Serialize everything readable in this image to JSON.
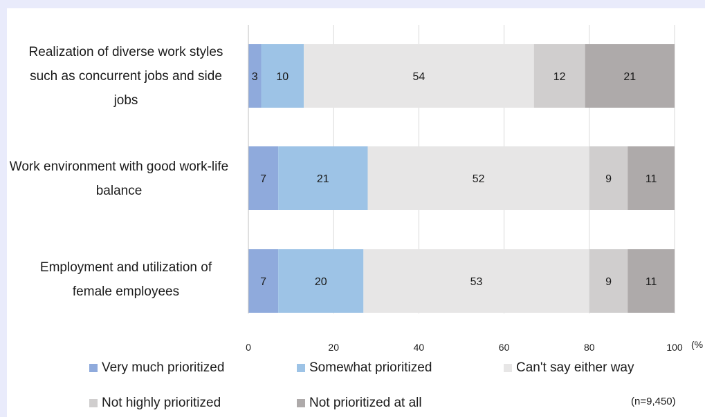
{
  "chart_data": {
    "type": "bar",
    "orientation": "horizontal",
    "stacked": true,
    "categories": [
      "Realization of diverse work styles such as concurrent jobs and side jobs",
      "Work environment with good work-life balance",
      "Employment and utilization of female employees"
    ],
    "series": [
      {
        "name": "Very much prioritized",
        "color": "#8faadc",
        "values": [
          3,
          7,
          7
        ]
      },
      {
        "name": "Somewhat prioritized",
        "color": "#9dc3e6",
        "values": [
          10,
          21,
          20
        ]
      },
      {
        "name": "Can't say either way",
        "color": "#e7e6e6",
        "values": [
          54,
          52,
          53
        ]
      },
      {
        "name": "Not highly prioritized",
        "color": "#d0cece",
        "values": [
          12,
          9,
          9
        ]
      },
      {
        "name": "Not prioritized at all",
        "color": "#aeaaaa",
        "values": [
          21,
          11,
          11
        ]
      }
    ],
    "xlim": [
      0,
      100
    ],
    "xticks": [
      "0",
      "20",
      "40",
      "60",
      "80",
      "100"
    ],
    "unit": "(%",
    "grid": true,
    "legend_position": "bottom",
    "note": "(n=9,450)"
  }
}
